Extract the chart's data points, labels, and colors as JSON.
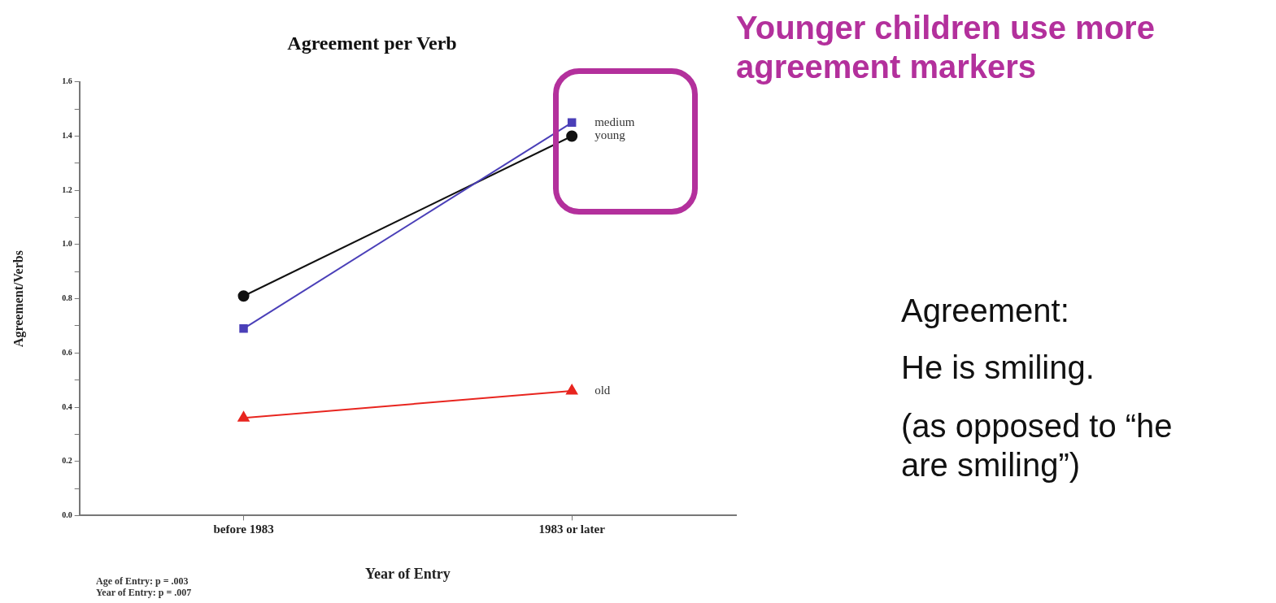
{
  "chart_data": {
    "type": "line",
    "title": "Agreement per Verb",
    "xlabel": "Year of Entry",
    "ylabel": "Agreement/Verbs",
    "categories": [
      "before 1983",
      "1983 or later"
    ],
    "series": [
      {
        "name": "medium",
        "color": "#4a3fb8",
        "marker": "square",
        "values": [
          0.69,
          1.45
        ]
      },
      {
        "name": "young",
        "color": "#111111",
        "marker": "circle",
        "values": [
          0.81,
          1.4
        ]
      },
      {
        "name": "old",
        "color": "#e8251f",
        "marker": "triangle",
        "values": [
          0.36,
          0.46
        ]
      }
    ],
    "ylim": [
      0,
      1.6
    ],
    "yticks": [
      {
        "value": 0,
        "label": "0.0"
      },
      {
        "value": 0.1,
        "label": null
      },
      0.2,
      {
        "value": 0.3,
        "label": null
      },
      0.4,
      {
        "value": 0.5,
        "label": null
      },
      0.6,
      {
        "value": 0.7,
        "label": null
      },
      0.8,
      {
        "value": 0.9,
        "label": null
      },
      {
        "value": 1,
        "label": "1.0"
      },
      {
        "value": 1.1,
        "label": null
      },
      1.2,
      {
        "value": 1.3,
        "label": null
      },
      1.4,
      {
        "value": 1.5,
        "label": null
      },
      1.6
    ],
    "grid": false,
    "legend": false,
    "annotations": [
      "Age of Entry:  p = .003",
      "Year of Entry: p = .007",
      "Younger children use more agreement markers",
      "Agreement:",
      "He is smiling.",
      "(as opposed to “he are smiling”)"
    ]
  }
}
